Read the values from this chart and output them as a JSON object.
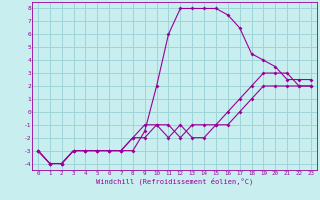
{
  "xlabel": "Windchill (Refroidissement éolien,°C)",
  "background_color": "#c8eef0",
  "grid_color": "#9ed4d8",
  "line_color": "#990099",
  "xlim": [
    -0.5,
    23.5
  ],
  "ylim": [
    -4.5,
    8.5
  ],
  "xticks": [
    0,
    1,
    2,
    3,
    4,
    5,
    6,
    7,
    8,
    9,
    10,
    11,
    12,
    13,
    14,
    15,
    16,
    17,
    18,
    19,
    20,
    21,
    22,
    23
  ],
  "yticks": [
    -4,
    -3,
    -2,
    -1,
    0,
    1,
    2,
    3,
    4,
    5,
    6,
    7,
    8
  ],
  "line1_x": [
    0,
    1,
    2,
    3,
    4,
    5,
    6,
    7,
    8,
    9,
    10,
    11,
    12,
    13,
    14,
    15,
    16,
    17,
    18,
    19,
    20,
    21,
    22,
    23
  ],
  "line1_y": [
    -3,
    -4,
    -4,
    -3,
    -3,
    -3,
    -3,
    -3,
    -2,
    -2,
    -1,
    -2,
    -1,
    -2,
    -2,
    -1,
    -1,
    0,
    1,
    2,
    2,
    2,
    2,
    2
  ],
  "line2_x": [
    0,
    1,
    2,
    3,
    4,
    5,
    6,
    7,
    8,
    9,
    10,
    11,
    12,
    13,
    14,
    15,
    16,
    17,
    18,
    19,
    20,
    21,
    22,
    23
  ],
  "line2_y": [
    -3,
    -4,
    -4,
    -3,
    -3,
    -3,
    -3,
    -3,
    -2,
    -1,
    -1,
    -1,
    -2,
    -1,
    -1,
    -1,
    0,
    1,
    2,
    3,
    3,
    3,
    2,
    2
  ],
  "line3_x": [
    0,
    1,
    2,
    3,
    4,
    5,
    6,
    7,
    8,
    9,
    10,
    11,
    12,
    13,
    14,
    15,
    16,
    17,
    18,
    19,
    20,
    21,
    22,
    23
  ],
  "line3_y": [
    -3,
    -4,
    -4,
    -3,
    -3,
    -3,
    -3,
    -3,
    -3,
    -1.5,
    2,
    6,
    8,
    8,
    8,
    8,
    7.5,
    6.5,
    4.5,
    4,
    3.5,
    2.5,
    2.5,
    2.5
  ]
}
